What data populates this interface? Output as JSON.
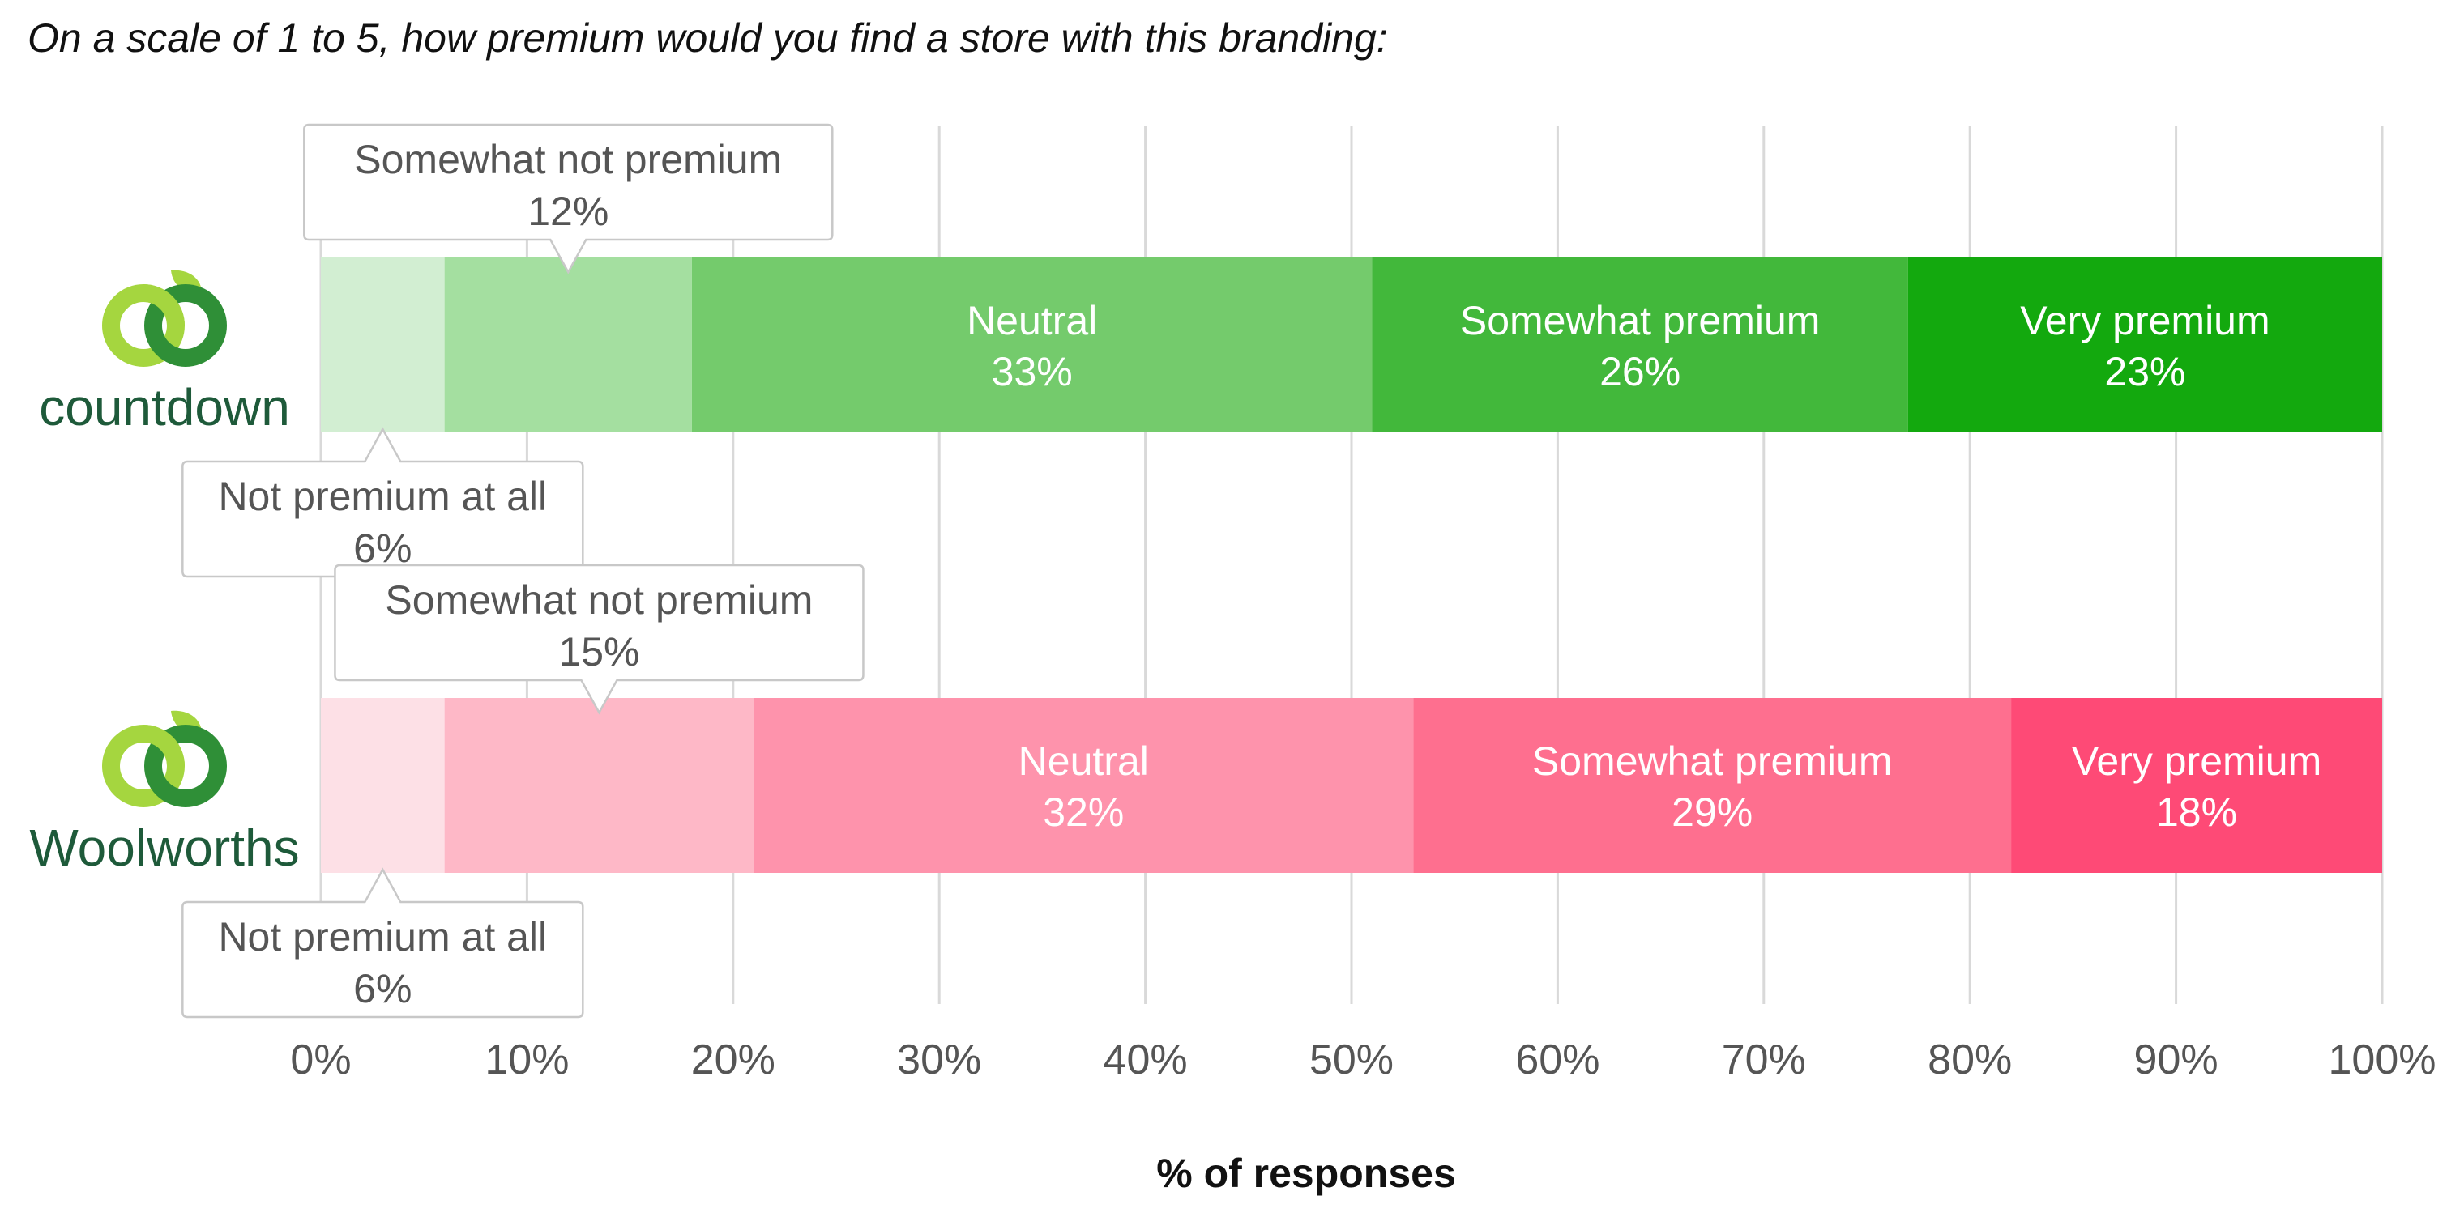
{
  "chart_data": {
    "type": "bar",
    "orientation": "horizontal",
    "stacked": true,
    "title": "On a scale of 1 to 5, how premium would you find a store with this branding:",
    "xlabel": "% of responses",
    "ylabel": "",
    "xlim": [
      0,
      100
    ],
    "ticks": [
      "0%",
      "10%",
      "20%",
      "30%",
      "40%",
      "50%",
      "60%",
      "70%",
      "80%",
      "90%",
      "100%"
    ],
    "tick_values": [
      0,
      10,
      20,
      30,
      40,
      50,
      60,
      70,
      80,
      90,
      100
    ],
    "grid": true,
    "series_names": [
      "Not premium at all",
      "Somewhat not premium",
      "Neutral",
      "Somewhat premium",
      "Very premium"
    ],
    "categories": [
      {
        "brand": "countdown",
        "values": [
          6,
          12,
          33,
          26,
          23
        ],
        "labels": [
          "6%",
          "12%",
          "33%",
          "26%",
          "23%"
        ],
        "colors": [
          "#d2eed2",
          "#a4dfa0",
          "#74cb6c",
          "#42b83b",
          "#13a90e"
        ]
      },
      {
        "brand": "Woolworths",
        "values": [
          6,
          15,
          32,
          29,
          18
        ],
        "labels": [
          "6%",
          "15%",
          "32%",
          "29%",
          "18%"
        ],
        "colors": [
          "#fde0e6",
          "#feb8c7",
          "#fe93ac",
          "#fe6f8f",
          "#fe4a76"
        ]
      }
    ],
    "callout_series": [
      0,
      1
    ]
  },
  "colors": {
    "grid": "#d9d9d9",
    "callout_border": "#c8c8c8",
    "logo_light": "#a5d63f",
    "logo_dark": "#2f8f37",
    "brand_text": "#1e5a3a"
  },
  "icons": {
    "logo": "woolworths-apple-logo-icon"
  }
}
